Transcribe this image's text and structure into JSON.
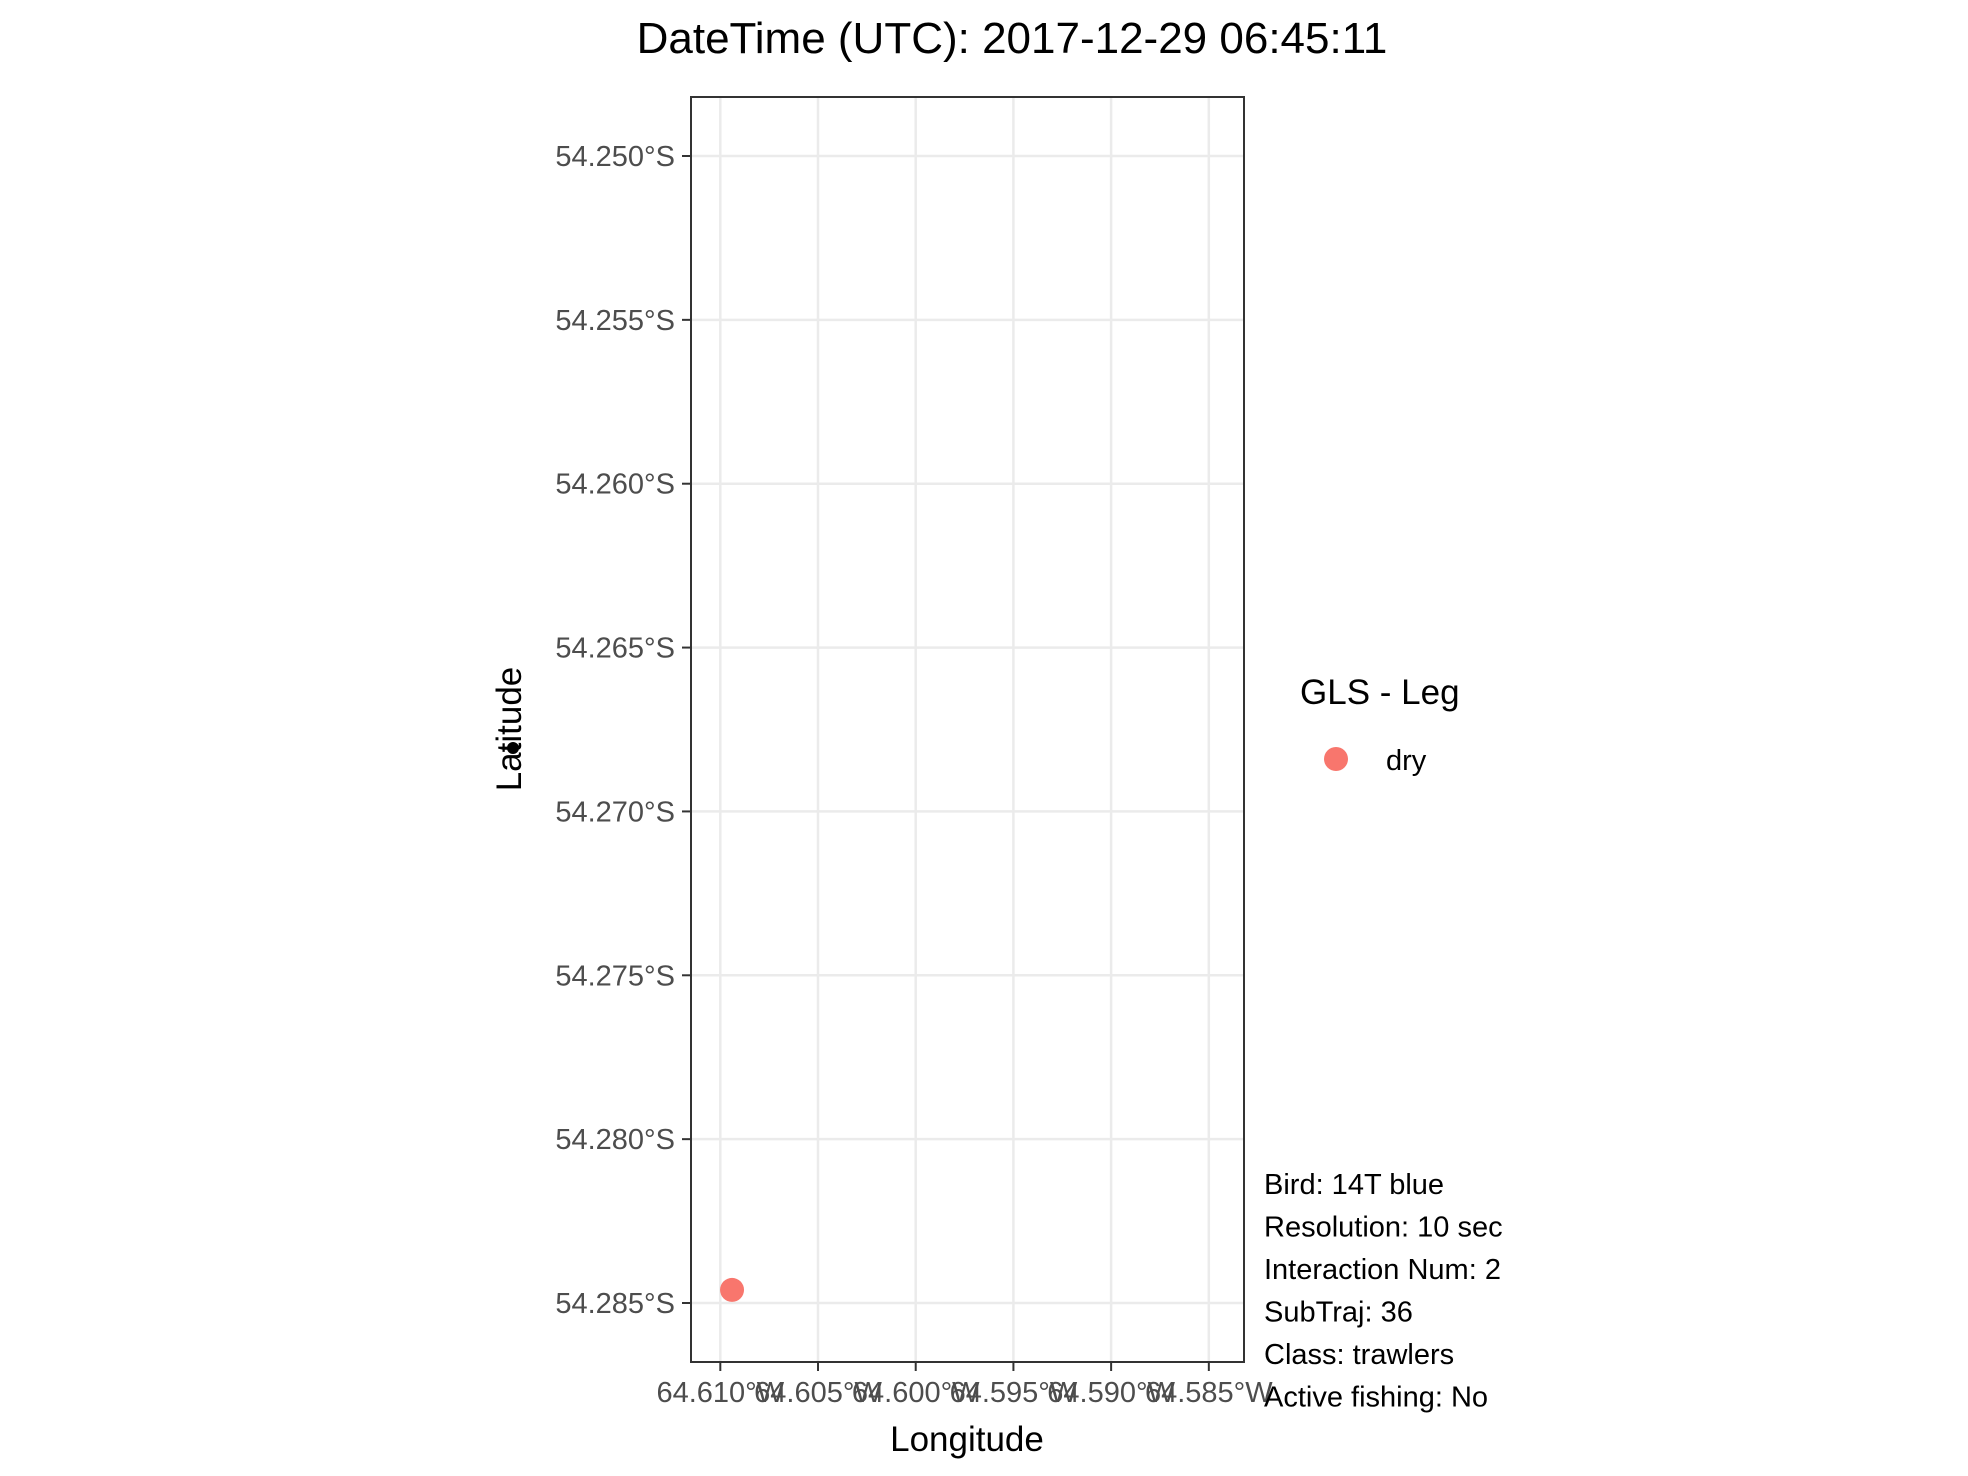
{
  "chart_data": {
    "type": "scatter",
    "title": "DateTime (UTC): 2017-12-29 06:45:11",
    "xlabel": "Longitude",
    "ylabel": "Latitude",
    "xlim": [
      -64.6115,
      -64.5832
    ],
    "ylim": [
      -54.2868,
      -54.2482
    ],
    "x_ticks": [
      -64.61,
      -64.605,
      -64.6,
      -64.595,
      -64.59,
      -64.585
    ],
    "x_tick_labels": [
      "64.610°W",
      "64.605°W",
      "64.600°W",
      "64.595°W",
      "64.590°W",
      "64.585°W"
    ],
    "y_ticks": [
      -54.25,
      -54.255,
      -54.26,
      -54.265,
      -54.27,
      -54.275,
      -54.28,
      -54.285
    ],
    "y_tick_labels": [
      "54.250°S",
      "54.255°S",
      "54.260°S",
      "54.265°S",
      "54.270°S",
      "54.275°S",
      "54.280°S",
      "54.285°S"
    ],
    "grid": true,
    "legend": {
      "title": "GLS - Leg",
      "placement": "right",
      "entries": [
        {
          "label": "dry",
          "color": "#F8766D"
        }
      ]
    },
    "series": [
      {
        "name": "dry",
        "color": "#F8766D",
        "points": [
          {
            "x": -64.6094,
            "y": -54.2846
          }
        ]
      }
    ],
    "annotations": [
      "Bird: 14T blue",
      "Resolution: 10 sec",
      "Interaction Num: 2",
      "SubTraj: 36",
      "Class: trawlers",
      "Active fishing: No"
    ]
  }
}
